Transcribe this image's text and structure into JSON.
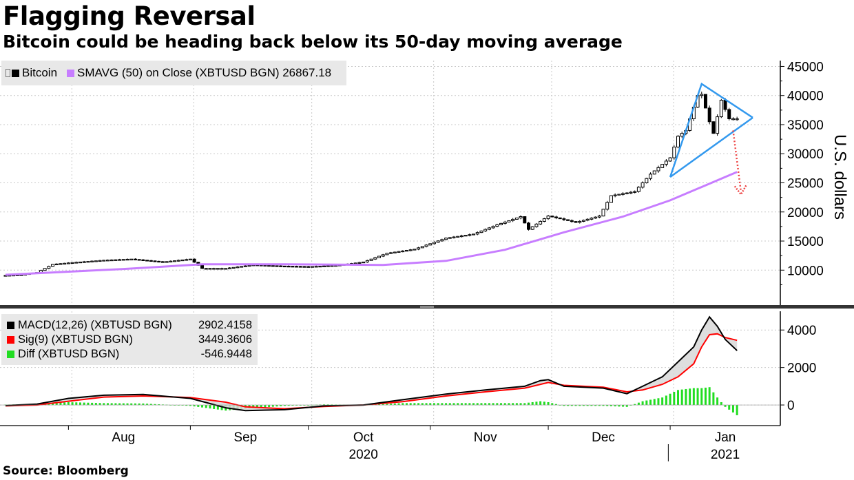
{
  "title": "Flagging Reversal",
  "subtitle": "Bitcoin could be heading back below its 50-day moving average",
  "source": "Source: Bloomberg",
  "colors": {
    "candle": "#000000",
    "sma": "#c77dff",
    "macd": "#000000",
    "signal": "#ff0000",
    "diff": "#22dd22",
    "triangle": "#3399ee",
    "arrow": "#ee4444",
    "legend_bg": "#e8e8e8"
  },
  "legend_main": {
    "bitcoin": "Bitcoin",
    "sma": "SMAVG (50)  on Close (XBTUSD BGN) 26867.18"
  },
  "legend_macd": {
    "macd_label": "MACD(12,26) (XBTUSD BGN)",
    "macd_value": "2902.4158",
    "sig_label": "Sig(9) (XBTUSD BGN)",
    "sig_value": "3449.3606",
    "diff_label": "Diff (XBTUSD BGN)",
    "diff_value": "-546.9448"
  },
  "chart_data": [
    {
      "type": "candlestick",
      "name": "price",
      "ylabel": "U.S. dollars",
      "ylim": [
        4000,
        46000
      ],
      "y_ticks": [
        10000,
        15000,
        20000,
        25000,
        30000,
        35000,
        40000,
        45000
      ],
      "x_range": [
        "2020-07-16",
        "2021-01-18"
      ],
      "x_ticks": [
        {
          "label": "Aug",
          "date": "2020-08-15"
        },
        {
          "label": "Sep",
          "date": "2020-09-15"
        },
        {
          "label": "Oct",
          "date": "2020-10-15"
        },
        {
          "label": "Nov",
          "date": "2020-11-15"
        },
        {
          "label": "Dec",
          "date": "2020-12-15"
        },
        {
          "label": "Jan",
          "date": "2021-01-15"
        }
      ],
      "year_labels": [
        {
          "label": "2020",
          "date": "2020-10-15"
        },
        {
          "label": "2021",
          "date": "2021-01-15"
        }
      ],
      "close_keypoints": [
        {
          "date": "2020-07-16",
          "close": 9100
        },
        {
          "date": "2020-07-20",
          "close": 9200
        },
        {
          "date": "2020-07-24",
          "close": 9600
        },
        {
          "date": "2020-07-28",
          "close": 11000
        },
        {
          "date": "2020-08-02",
          "close": 11300
        },
        {
          "date": "2020-08-10",
          "close": 11700
        },
        {
          "date": "2020-08-17",
          "close": 11900
        },
        {
          "date": "2020-08-25",
          "close": 11400
        },
        {
          "date": "2020-09-01",
          "close": 11900
        },
        {
          "date": "2020-09-04",
          "close": 10300
        },
        {
          "date": "2020-09-10",
          "close": 10300
        },
        {
          "date": "2020-09-17",
          "close": 10900
        },
        {
          "date": "2020-09-24",
          "close": 10700
        },
        {
          "date": "2020-10-01",
          "close": 10600
        },
        {
          "date": "2020-10-08",
          "close": 10800
        },
        {
          "date": "2020-10-15",
          "close": 11400
        },
        {
          "date": "2020-10-21",
          "close": 12900
        },
        {
          "date": "2020-10-28",
          "close": 13600
        },
        {
          "date": "2020-11-05",
          "close": 15500
        },
        {
          "date": "2020-11-12",
          "close": 16200
        },
        {
          "date": "2020-11-18",
          "close": 17800
        },
        {
          "date": "2020-11-24",
          "close": 19200
        },
        {
          "date": "2020-11-26",
          "close": 17000
        },
        {
          "date": "2020-12-01",
          "close": 19300
        },
        {
          "date": "2020-12-08",
          "close": 18200
        },
        {
          "date": "2020-12-14",
          "close": 19300
        },
        {
          "date": "2020-12-17",
          "close": 22800
        },
        {
          "date": "2020-12-23",
          "close": 23500
        },
        {
          "date": "2020-12-27",
          "close": 26500
        },
        {
          "date": "2021-01-01",
          "close": 29300
        },
        {
          "date": "2021-01-03",
          "close": 33000
        },
        {
          "date": "2021-01-05",
          "close": 34000
        },
        {
          "date": "2021-01-08",
          "close": 40000
        },
        {
          "date": "2021-01-09",
          "close": 40200
        },
        {
          "date": "2021-01-11",
          "close": 35500
        },
        {
          "date": "2021-01-12",
          "close": 33500
        },
        {
          "date": "2021-01-14",
          "close": 39200
        },
        {
          "date": "2021-01-16",
          "close": 36000
        },
        {
          "date": "2021-01-18",
          "close": 36000
        }
      ],
      "sma_keypoints": [
        {
          "date": "2020-07-16",
          "value": 9200
        },
        {
          "date": "2020-08-15",
          "value": 10200
        },
        {
          "date": "2020-09-04",
          "value": 11000
        },
        {
          "date": "2020-09-25",
          "value": 11000
        },
        {
          "date": "2020-10-20",
          "value": 10900
        },
        {
          "date": "2020-11-05",
          "value": 11600
        },
        {
          "date": "2020-11-20",
          "value": 13500
        },
        {
          "date": "2020-12-05",
          "value": 16500
        },
        {
          "date": "2020-12-20",
          "value": 19200
        },
        {
          "date": "2021-01-01",
          "value": 22000
        },
        {
          "date": "2021-01-18",
          "value": 26867.18
        }
      ],
      "annotations": {
        "triangle": [
          {
            "date": "2021-01-01",
            "value": 26000
          },
          {
            "date": "2021-01-09",
            "value": 42000
          },
          {
            "date": "2021-01-22",
            "value": 36200
          }
        ],
        "arrow": [
          {
            "date": "2021-01-17",
            "value": 34000
          },
          {
            "date": "2021-01-19",
            "value": 23000
          }
        ]
      }
    },
    {
      "type": "line",
      "name": "macd",
      "ylim": [
        -1100,
        5000
      ],
      "y_ticks": [
        0,
        2000,
        4000
      ],
      "series": [
        {
          "name": "MACD(12,26) (XBTUSD BGN)",
          "points": [
            {
              "date": "2020-07-16",
              "value": -30
            },
            {
              "date": "2020-07-24",
              "value": 50
            },
            {
              "date": "2020-08-01",
              "value": 350
            },
            {
              "date": "2020-08-10",
              "value": 520
            },
            {
              "date": "2020-08-20",
              "value": 560
            },
            {
              "date": "2020-09-01",
              "value": 350
            },
            {
              "date": "2020-09-05",
              "value": 130
            },
            {
              "date": "2020-09-10",
              "value": -150
            },
            {
              "date": "2020-09-15",
              "value": -300
            },
            {
              "date": "2020-09-25",
              "value": -250
            },
            {
              "date": "2020-10-05",
              "value": -50
            },
            {
              "date": "2020-10-15",
              "value": 0
            },
            {
              "date": "2020-10-25",
              "value": 280
            },
            {
              "date": "2020-11-05",
              "value": 580
            },
            {
              "date": "2020-11-15",
              "value": 800
            },
            {
              "date": "2020-11-25",
              "value": 1000
            },
            {
              "date": "2020-11-29",
              "value": 1300
            },
            {
              "date": "2020-12-01",
              "value": 1350
            },
            {
              "date": "2020-12-05",
              "value": 1000
            },
            {
              "date": "2020-12-15",
              "value": 900
            },
            {
              "date": "2020-12-21",
              "value": 600
            },
            {
              "date": "2020-12-25",
              "value": 1000
            },
            {
              "date": "2020-12-30",
              "value": 1500
            },
            {
              "date": "2021-01-03",
              "value": 2300
            },
            {
              "date": "2021-01-07",
              "value": 3100
            },
            {
              "date": "2021-01-09",
              "value": 4000
            },
            {
              "date": "2021-01-11",
              "value": 4700
            },
            {
              "date": "2021-01-13",
              "value": 4200
            },
            {
              "date": "2021-01-15",
              "value": 3500
            },
            {
              "date": "2021-01-18",
              "value": 2902.4158
            }
          ]
        },
        {
          "name": "Sig(9) (XBTUSD BGN)",
          "points": [
            {
              "date": "2020-07-16",
              "value": -50
            },
            {
              "date": "2020-07-24",
              "value": 0
            },
            {
              "date": "2020-08-01",
              "value": 200
            },
            {
              "date": "2020-08-10",
              "value": 420
            },
            {
              "date": "2020-08-20",
              "value": 480
            },
            {
              "date": "2020-09-01",
              "value": 400
            },
            {
              "date": "2020-09-10",
              "value": 150
            },
            {
              "date": "2020-09-15",
              "value": -100
            },
            {
              "date": "2020-09-25",
              "value": -200
            },
            {
              "date": "2020-10-05",
              "value": -80
            },
            {
              "date": "2020-10-15",
              "value": 0
            },
            {
              "date": "2020-10-25",
              "value": 180
            },
            {
              "date": "2020-11-05",
              "value": 480
            },
            {
              "date": "2020-11-15",
              "value": 700
            },
            {
              "date": "2020-11-25",
              "value": 900
            },
            {
              "date": "2020-12-01",
              "value": 1200
            },
            {
              "date": "2020-12-05",
              "value": 1050
            },
            {
              "date": "2020-12-15",
              "value": 950
            },
            {
              "date": "2020-12-21",
              "value": 700
            },
            {
              "date": "2020-12-25",
              "value": 800
            },
            {
              "date": "2020-12-30",
              "value": 1100
            },
            {
              "date": "2021-01-03",
              "value": 1500
            },
            {
              "date": "2021-01-07",
              "value": 2200
            },
            {
              "date": "2021-01-09",
              "value": 3100
            },
            {
              "date": "2021-01-11",
              "value": 3750
            },
            {
              "date": "2021-01-13",
              "value": 3800
            },
            {
              "date": "2021-01-15",
              "value": 3600
            },
            {
              "date": "2021-01-18",
              "value": 3449.3606
            }
          ]
        },
        {
          "name": "Diff (XBTUSD BGN)",
          "type": "bar",
          "note_dates": "daily histogram = MACD - Sig",
          "final": -546.9448
        }
      ]
    }
  ]
}
